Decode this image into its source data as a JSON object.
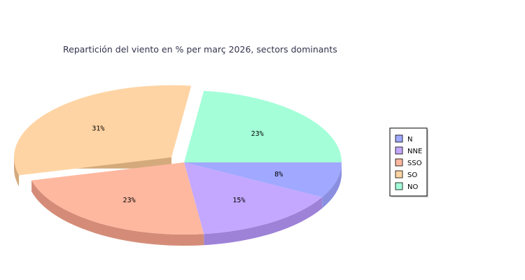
{
  "chart_data": {
    "type": "pie",
    "title": "Repartición del viento en % per març 2026, sectors dominants",
    "slices": [
      {
        "name": "N",
        "value": 8,
        "label": "8%",
        "color": "#a0a8ff",
        "side": "#8a8fe0"
      },
      {
        "name": "NNE",
        "value": 15,
        "label": "15%",
        "color": "#c4a8ff",
        "side": "#9d82d8"
      },
      {
        "name": "SSO",
        "value": 23,
        "label": "23%",
        "color": "#ffb8a0",
        "side": "#d48c78"
      },
      {
        "name": "SO",
        "value": 31,
        "label": "31%",
        "color": "#ffd4a4",
        "side": "#d4aa7c",
        "exploded": true
      },
      {
        "name": "NO",
        "value": 23,
        "label": "23%",
        "color": "#a4ffd8",
        "side": "#7fd4b0"
      }
    ],
    "legend": {
      "position": "right",
      "entries": [
        "N",
        "NNE",
        "SSO",
        "SO",
        "NO"
      ]
    }
  }
}
